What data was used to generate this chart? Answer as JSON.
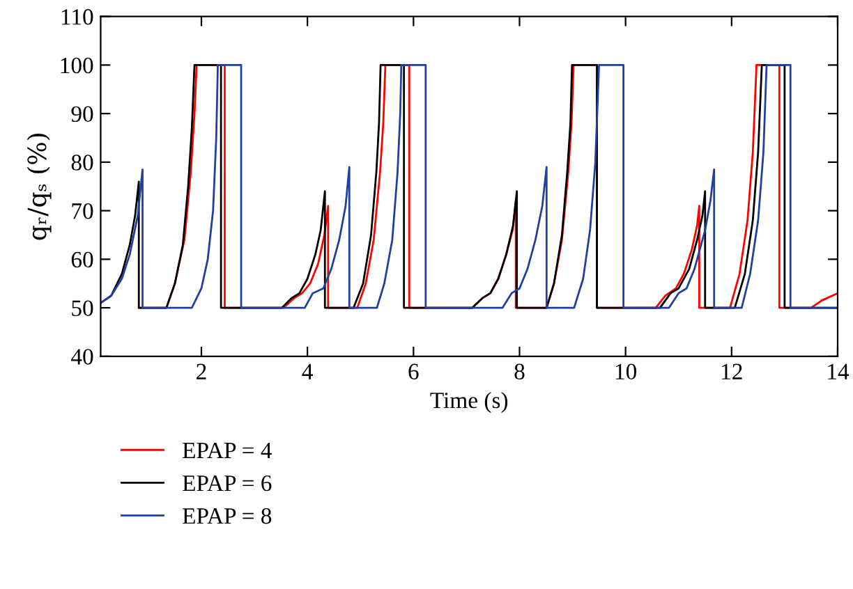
{
  "chart_data": {
    "type": "line",
    "xlabel": "Time (s)",
    "ylabel": "qᵣ/qₛ (%)",
    "xlim": [
      0.1,
      14
    ],
    "xticks": [
      2,
      4,
      6,
      8,
      10,
      12,
      14
    ],
    "ylim": [
      40,
      110
    ],
    "yticks": [
      40,
      50,
      60,
      70,
      80,
      90,
      100,
      110
    ],
    "grid": false,
    "legend": "bottom",
    "marker": "none",
    "line_style": "solid",
    "series": [
      {
        "name": "EPAP = 4",
        "color": "#ff0000",
        "x": [
          0.82,
          1.34,
          1.5,
          1.68,
          1.8,
          1.87,
          1.91,
          2.44,
          2.44,
          3.55,
          3.75,
          3.9,
          4.05,
          4.2,
          4.32,
          4.39,
          4.39,
          4.94,
          5.1,
          5.25,
          5.37,
          5.43,
          5.47,
          5.92,
          5.92,
          7.11,
          7.3,
          7.45,
          7.6,
          7.75,
          7.87,
          7.93,
          7.93,
          8.51,
          8.65,
          8.8,
          8.92,
          8.98,
          9.02,
          9.46,
          9.46,
          10.57,
          10.75,
          10.95,
          11.1,
          11.25,
          11.35,
          11.39,
          11.39,
          11.97,
          12.15,
          12.3,
          12.4,
          12.47,
          12.9,
          12.9,
          13.5,
          13.7,
          14
        ],
        "values": [
          50,
          50,
          55,
          64,
          78,
          90,
          100,
          100,
          50,
          50,
          52,
          53,
          55,
          59,
          65,
          71,
          50,
          50,
          55,
          64,
          78,
          88,
          100,
          100,
          50,
          50,
          52,
          53,
          56,
          61,
          66,
          72,
          50,
          50,
          55,
          64,
          78,
          88,
          100,
          100,
          50,
          50,
          52.5,
          54,
          57,
          62,
          67,
          71,
          50,
          50,
          57,
          68,
          82,
          100,
          100,
          50,
          50,
          51.5,
          53
        ]
      },
      {
        "name": "EPAP = 6",
        "color": "#000000",
        "x": [
          0.1,
          0.3,
          0.5,
          0.65,
          0.75,
          0.82,
          0.82,
          1.34,
          1.5,
          1.65,
          1.75,
          1.82,
          1.87,
          2.37,
          2.37,
          3.52,
          3.7,
          3.85,
          4.0,
          4.15,
          4.25,
          4.33,
          4.33,
          4.87,
          5.05,
          5.2,
          5.3,
          5.35,
          5.38,
          5.82,
          5.82,
          7.11,
          7.3,
          7.45,
          7.6,
          7.75,
          7.88,
          7.95,
          7.95,
          8.51,
          8.65,
          8.8,
          8.9,
          8.96,
          8.99,
          9.46,
          9.46,
          10.65,
          10.85,
          11.0,
          11.2,
          11.35,
          11.45,
          11.5,
          11.5,
          12.06,
          12.25,
          12.4,
          12.5,
          12.57,
          13.0,
          13.0,
          14
        ],
        "values": [
          51,
          52.5,
          57,
          63,
          69,
          76,
          50,
          50,
          55,
          63,
          75,
          87,
          100,
          100,
          50,
          50,
          52,
          53,
          56,
          61,
          66,
          74,
          50,
          50,
          55,
          65,
          78,
          88,
          100,
          100,
          50,
          50,
          52,
          53,
          56,
          61,
          67,
          74,
          50,
          50,
          55,
          65,
          78,
          88,
          100,
          100,
          50,
          50,
          53,
          54,
          58,
          64,
          69,
          74,
          50,
          50,
          57,
          68,
          82,
          100,
          100,
          50,
          50
        ]
      },
      {
        "name": "EPAP = 8",
        "color": "#2040a0",
        "x": [
          0.1,
          0.3,
          0.5,
          0.65,
          0.8,
          0.89,
          0.89,
          1.82,
          2.0,
          2.12,
          2.22,
          2.28,
          2.31,
          2.75,
          2.75,
          3.95,
          4.1,
          4.3,
          4.45,
          4.6,
          4.72,
          4.79,
          4.79,
          5.31,
          5.45,
          5.6,
          5.7,
          5.75,
          5.77,
          6.23,
          6.23,
          7.68,
          7.85,
          8.0,
          8.15,
          8.3,
          8.43,
          8.51,
          8.51,
          9.03,
          9.2,
          9.33,
          9.43,
          9.5,
          9.96,
          9.96,
          10.82,
          11.0,
          11.15,
          11.3,
          11.5,
          11.6,
          11.67,
          11.67,
          12.19,
          12.35,
          12.5,
          12.6,
          12.66,
          13.11,
          13.11,
          14
        ],
        "values": [
          51,
          52.5,
          56,
          61,
          69,
          78.5,
          50,
          50,
          54,
          60,
          70,
          85,
          100,
          100,
          50,
          50,
          53,
          54,
          58,
          64,
          71,
          79,
          50,
          50,
          55,
          64,
          78,
          90,
          100,
          100,
          50,
          50,
          53,
          54,
          58,
          64,
          71,
          79,
          50,
          50,
          56,
          66,
          80,
          100,
          100,
          50,
          50,
          53,
          54,
          58,
          66,
          72,
          78.5,
          50,
          50,
          57,
          68,
          82,
          100,
          100,
          50,
          50
        ]
      }
    ]
  }
}
